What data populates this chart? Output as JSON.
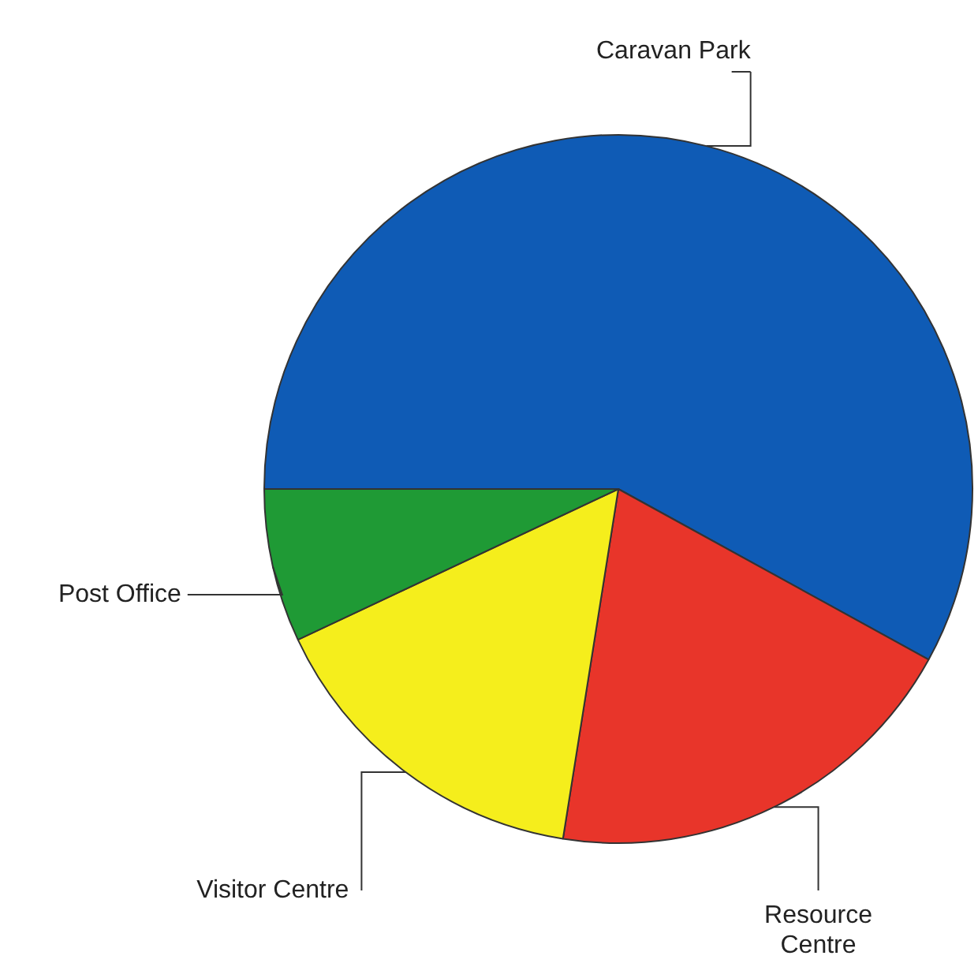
{
  "chart_data": {
    "type": "pie",
    "categories": [
      "Caravan Park",
      "Resource Centre",
      "Visitor Centre",
      "Post Office"
    ],
    "values": [
      58,
      19.5,
      15.5,
      7
    ],
    "colors": [
      "#0f5bb5",
      "#e8352a",
      "#f5ee1c",
      "#1f9a35"
    ],
    "legend": false
  }
}
